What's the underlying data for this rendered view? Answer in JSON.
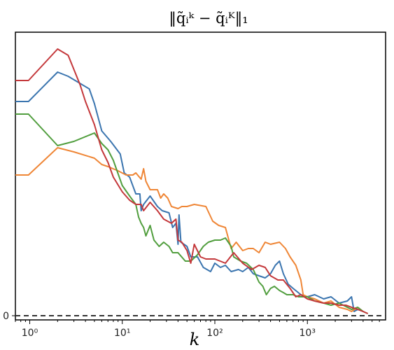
{
  "chart_data": {
    "type": "line",
    "title": "‖q̃ᵢᵏ − q̃ᵢᴷ‖₁",
    "xlabel": "k",
    "ylabel": "",
    "xscale": "log",
    "xlim": [
      0.7,
      7000
    ],
    "ylim": [
      -0.2,
      13.5
    ],
    "grid": false,
    "legend": "none",
    "x_ticks": [
      {
        "value": 1,
        "label": "10⁰"
      },
      {
        "value": 10,
        "label": "10¹"
      },
      {
        "value": 100,
        "label": "10²"
      },
      {
        "value": 1000,
        "label": "10³"
      }
    ],
    "y_ticks": [
      {
        "value": 0,
        "label": "0"
      }
    ],
    "reference_line": {
      "y": 0,
      "style": "dashed",
      "color": "#333333"
    },
    "series": [
      {
        "color": "#3b75af",
        "points": [
          [
            0.7,
            10.2
          ],
          [
            0.97,
            10.2
          ],
          [
            2,
            11.6
          ],
          [
            2.6,
            11.4
          ],
          [
            4.4,
            10.8
          ],
          [
            5,
            10.1
          ],
          [
            6,
            8.8
          ],
          [
            7.5,
            8.3
          ],
          [
            9.5,
            7.7
          ],
          [
            10.5,
            6.8
          ],
          [
            12,
            6.6
          ],
          [
            14,
            5.8
          ],
          [
            15.5,
            5.8
          ],
          [
            16,
            5.0
          ],
          [
            17,
            5.3
          ],
          [
            20,
            5.7
          ],
          [
            24,
            5.2
          ],
          [
            27,
            5.0
          ],
          [
            32,
            4.9
          ],
          [
            35,
            4.2
          ],
          [
            38,
            4.4
          ],
          [
            40,
            3.4
          ],
          [
            41,
            4.8
          ],
          [
            43,
            3.5
          ],
          [
            50,
            3.3
          ],
          [
            55,
            2.8
          ],
          [
            65,
            2.8
          ],
          [
            75,
            2.3
          ],
          [
            90,
            2.1
          ],
          [
            100,
            2.5
          ],
          [
            115,
            2.3
          ],
          [
            130,
            2.4
          ],
          [
            150,
            2.1
          ],
          [
            180,
            2.2
          ],
          [
            200,
            2.1
          ],
          [
            230,
            2.3
          ],
          [
            260,
            2.0
          ],
          [
            300,
            1.9
          ],
          [
            350,
            1.8
          ],
          [
            400,
            2.0
          ],
          [
            450,
            2.4
          ],
          [
            500,
            2.6
          ],
          [
            550,
            2.0
          ],
          [
            620,
            1.5
          ],
          [
            700,
            1.3
          ],
          [
            850,
            1.0
          ],
          [
            1000,
            0.9
          ],
          [
            1200,
            1.0
          ],
          [
            1500,
            0.8
          ],
          [
            1800,
            0.9
          ],
          [
            2200,
            0.6
          ],
          [
            2700,
            0.7
          ],
          [
            3000,
            0.9
          ],
          [
            3200,
            0.2
          ],
          [
            3500,
            0.3
          ],
          [
            4000,
            0.2
          ]
        ]
      },
      {
        "color": "#ef8636",
        "points": [
          [
            0.7,
            6.7
          ],
          [
            0.97,
            6.7
          ],
          [
            2,
            8.0
          ],
          [
            3,
            7.8
          ],
          [
            5,
            7.5
          ],
          [
            6,
            7.2
          ],
          [
            7,
            7.1
          ],
          [
            9,
            6.9
          ],
          [
            11,
            6.7
          ],
          [
            13,
            6.7
          ],
          [
            14,
            6.8
          ],
          [
            16,
            6.5
          ],
          [
            17,
            7.0
          ],
          [
            18,
            6.4
          ],
          [
            20,
            6.0
          ],
          [
            24,
            6.0
          ],
          [
            26,
            5.6
          ],
          [
            28,
            5.8
          ],
          [
            31,
            5.6
          ],
          [
            34,
            5.2
          ],
          [
            40,
            5.1
          ],
          [
            44,
            5.2
          ],
          [
            50,
            5.2
          ],
          [
            60,
            5.3
          ],
          [
            80,
            5.2
          ],
          [
            95,
            4.5
          ],
          [
            110,
            4.3
          ],
          [
            130,
            4.2
          ],
          [
            150,
            3.2
          ],
          [
            170,
            3.5
          ],
          [
            200,
            3.1
          ],
          [
            230,
            3.2
          ],
          [
            260,
            3.2
          ],
          [
            300,
            3.0
          ],
          [
            350,
            3.5
          ],
          [
            400,
            3.4
          ],
          [
            500,
            3.5
          ],
          [
            580,
            3.2
          ],
          [
            650,
            2.8
          ],
          [
            750,
            2.4
          ],
          [
            850,
            1.7
          ],
          [
            900,
            1.0
          ],
          [
            1000,
            0.9
          ],
          [
            1200,
            0.8
          ],
          [
            1500,
            0.6
          ],
          [
            1800,
            0.7
          ],
          [
            2200,
            0.4
          ],
          [
            2700,
            0.3
          ],
          [
            3000,
            0.2
          ],
          [
            3500,
            0.4
          ],
          [
            4000,
            0.2
          ]
        ]
      },
      {
        "color": "#519e3e",
        "points": [
          [
            0.7,
            9.6
          ],
          [
            0.97,
            9.6
          ],
          [
            2,
            8.1
          ],
          [
            3,
            8.3
          ],
          [
            5,
            8.7
          ],
          [
            6,
            8.2
          ],
          [
            7,
            7.9
          ],
          [
            8,
            7.4
          ],
          [
            10,
            6.2
          ],
          [
            12,
            5.7
          ],
          [
            14,
            5.3
          ],
          [
            15,
            4.7
          ],
          [
            16,
            4.4
          ],
          [
            17,
            4.2
          ],
          [
            18,
            3.8
          ],
          [
            20,
            4.3
          ],
          [
            22,
            3.6
          ],
          [
            25,
            3.3
          ],
          [
            28,
            3.5
          ],
          [
            32,
            3.3
          ],
          [
            35,
            3.0
          ],
          [
            40,
            3.0
          ],
          [
            48,
            2.6
          ],
          [
            55,
            2.6
          ],
          [
            65,
            2.9
          ],
          [
            75,
            3.3
          ],
          [
            85,
            3.5
          ],
          [
            100,
            3.6
          ],
          [
            115,
            3.6
          ],
          [
            130,
            3.7
          ],
          [
            150,
            3.3
          ],
          [
            160,
            2.8
          ],
          [
            190,
            2.6
          ],
          [
            220,
            2.5
          ],
          [
            260,
            2.2
          ],
          [
            300,
            1.6
          ],
          [
            330,
            1.4
          ],
          [
            360,
            1.0
          ],
          [
            400,
            1.3
          ],
          [
            440,
            1.4
          ],
          [
            500,
            1.2
          ],
          [
            550,
            1.1
          ],
          [
            600,
            1.0
          ],
          [
            700,
            1.0
          ],
          [
            800,
            0.9
          ],
          [
            1000,
            0.9
          ],
          [
            1200,
            0.7
          ],
          [
            1500,
            0.6
          ],
          [
            1800,
            0.5
          ],
          [
            2200,
            0.6
          ],
          [
            2700,
            0.4
          ],
          [
            3000,
            0.3
          ],
          [
            3500,
            0.4
          ],
          [
            4000,
            0.2
          ],
          [
            4500,
            0.1
          ]
        ]
      },
      {
        "color": "#c4383b",
        "points": [
          [
            0.7,
            11.2
          ],
          [
            0.97,
            11.2
          ],
          [
            2,
            12.7
          ],
          [
            2.6,
            12.4
          ],
          [
            3.5,
            11.0
          ],
          [
            4,
            10.2
          ],
          [
            5,
            9.1
          ],
          [
            6,
            7.9
          ],
          [
            7,
            7.3
          ],
          [
            8,
            6.6
          ],
          [
            10,
            5.9
          ],
          [
            12,
            5.5
          ],
          [
            14,
            5.3
          ],
          [
            16,
            5.3
          ],
          [
            17,
            5.0
          ],
          [
            20,
            5.4
          ],
          [
            24,
            5.0
          ],
          [
            28,
            4.6
          ],
          [
            34,
            4.4
          ],
          [
            38,
            4.6
          ],
          [
            40,
            3.6
          ],
          [
            44,
            3.5
          ],
          [
            50,
            3.1
          ],
          [
            55,
            2.5
          ],
          [
            60,
            3.4
          ],
          [
            70,
            2.8
          ],
          [
            80,
            2.7
          ],
          [
            100,
            2.7
          ],
          [
            130,
            2.5
          ],
          [
            160,
            3.0
          ],
          [
            200,
            2.5
          ],
          [
            250,
            2.2
          ],
          [
            300,
            2.4
          ],
          [
            350,
            2.3
          ],
          [
            400,
            1.9
          ],
          [
            480,
            1.7
          ],
          [
            550,
            1.7
          ],
          [
            650,
            1.3
          ],
          [
            750,
            0.9
          ],
          [
            850,
            1.0
          ],
          [
            1000,
            0.8
          ],
          [
            1200,
            0.7
          ],
          [
            1500,
            0.6
          ],
          [
            1800,
            0.6
          ],
          [
            2200,
            0.5
          ],
          [
            2600,
            0.5
          ],
          [
            3000,
            0.4
          ],
          [
            3500,
            0.3
          ],
          [
            4000,
            0.2
          ],
          [
            4500,
            0.1
          ]
        ]
      }
    ]
  }
}
